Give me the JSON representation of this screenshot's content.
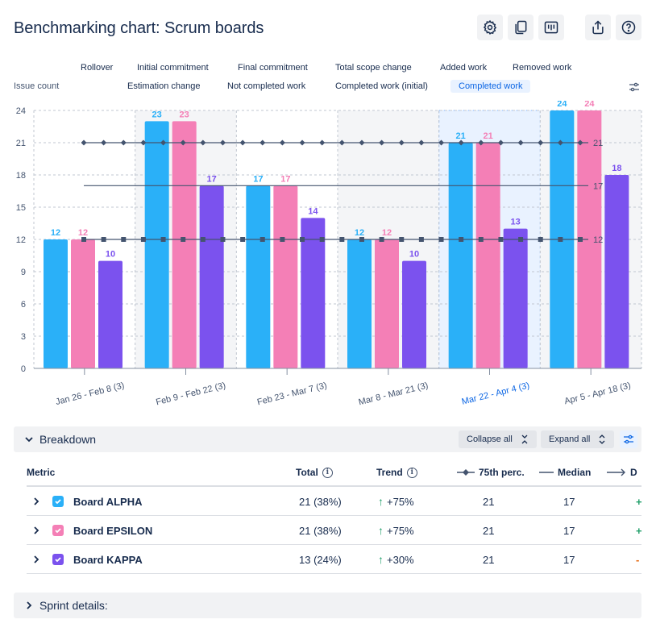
{
  "header": {
    "title": "Benchmarking chart: Scrum boards",
    "toolbar": [
      "gear-icon",
      "copy-icon",
      "team-icon",
      "share-icon",
      "help-icon"
    ]
  },
  "legend": {
    "row1": [
      "Rollover",
      "Initial commitment",
      "Final commitment",
      "Total scope change",
      "Added work",
      "Removed work"
    ],
    "row2": [
      "Estimation change",
      "Not completed work",
      "Completed work (initial)",
      "Completed work"
    ],
    "active": "Completed work"
  },
  "chart_data": {
    "type": "bar",
    "ylabel": "Issue count",
    "ylim": [
      0,
      24
    ],
    "yticks": [
      0,
      3,
      6,
      9,
      12,
      15,
      18,
      21,
      24
    ],
    "categories": [
      "Jan 26 - Feb 8 (3)",
      "Feb 9 - Feb 22 (3)",
      "Feb 23 - Mar 7 (3)",
      "Mar 8 - Mar 21 (3)",
      "Mar 22 - Apr 4 (3)",
      "Apr 5 - Apr 18 (3)"
    ],
    "highlighted_category": "Mar 22 - Apr 4 (3)",
    "series": [
      {
        "name": "Board ALPHA",
        "color": "#2ab0f8",
        "values": [
          12,
          23,
          17,
          12,
          21,
          24
        ]
      },
      {
        "name": "Board EPSILON",
        "color": "#f47fb6",
        "values": [
          12,
          23,
          17,
          12,
          21,
          24
        ]
      },
      {
        "name": "Board KAPPA",
        "color": "#7b52ee",
        "values": [
          10,
          17,
          14,
          10,
          13,
          18
        ]
      }
    ],
    "reference_lines": [
      {
        "name": "75th perc.",
        "value": 21,
        "label": "21",
        "marker": "diamond"
      },
      {
        "name": "Median",
        "value": 17,
        "label": "17",
        "marker": "none"
      },
      {
        "name": "",
        "value": 12,
        "label": "12",
        "marker": "square"
      }
    ],
    "grid": true,
    "alternating_band_color": "#f4f5f7",
    "highlight_color": "#e9f2ff"
  },
  "breakdown": {
    "title": "Breakdown",
    "collapse_all": "Collapse all",
    "expand_all": "Expand all",
    "columns": {
      "metric": "Metric",
      "total": "Total",
      "trend": "Trend",
      "p75": "75th perc.",
      "median": "Median",
      "next": "D"
    },
    "rows": [
      {
        "name": "Board ALPHA",
        "color": "#2ab0f8",
        "total": "21 (38%)",
        "trend": "+75%",
        "p75": "21",
        "median": "17",
        "extra": "+",
        "extra_color": "#22a06b"
      },
      {
        "name": "Board EPSILON",
        "color": "#f47fb6",
        "total": "21 (38%)",
        "trend": "+75%",
        "p75": "21",
        "median": "17",
        "extra": "+",
        "extra_color": "#22a06b"
      },
      {
        "name": "Board KAPPA",
        "color": "#7b52ee",
        "total": "13 (24%)",
        "trend": "+30%",
        "p75": "21",
        "median": "17",
        "extra": "-",
        "extra_color": "#e56910"
      }
    ]
  },
  "sprint_details": {
    "title": "Sprint details:"
  }
}
